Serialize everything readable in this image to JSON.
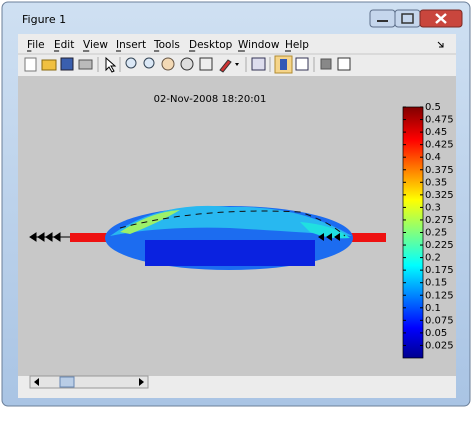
{
  "window": {
    "title": "Figure 1"
  },
  "menu": [
    "File",
    "Edit",
    "View",
    "Insert",
    "Tools",
    "Desktop",
    "Window",
    "Help"
  ],
  "plot": {
    "title": "02-Nov-2008 18:20:01"
  },
  "colorbar": {
    "lim": [
      0,
      0.5
    ],
    "ticks": [
      0.025,
      0.05,
      0.075,
      0.1,
      0.125,
      0.15,
      0.175,
      0.2,
      0.225,
      0.25,
      0.275,
      0.3,
      0.325,
      0.35,
      0.375,
      0.4,
      0.425,
      0.45,
      0.475,
      0.5
    ]
  }
}
